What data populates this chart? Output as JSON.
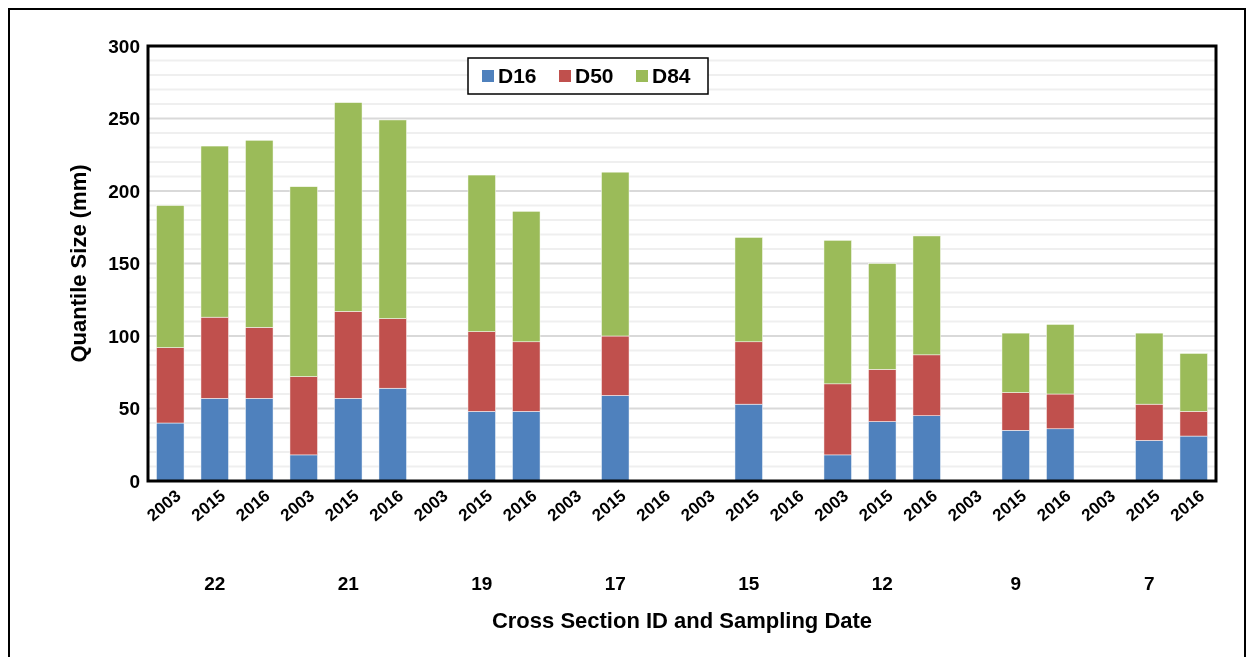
{
  "chart_data": {
    "type": "bar",
    "stacked": true,
    "xlabel": "Cross Section ID and Sampling Date",
    "ylabel": "Quantile Size (mm)",
    "categories": [
      "2003",
      "2015",
      "2016",
      "2003",
      "2015",
      "2016",
      "2003",
      "2015",
      "2016",
      "2003",
      "2015",
      "2016",
      "2003",
      "2015",
      "2016",
      "2003",
      "2015",
      "2016",
      "2003",
      "2015",
      "2016",
      "2003",
      "2015",
      "2016"
    ],
    "annotations": [
      "22",
      "21",
      "19",
      "17",
      "15",
      "12",
      "9",
      "7"
    ],
    "series": [
      {
        "name": "D16",
        "color": "#4f81bd",
        "values": [
          40,
          57,
          57,
          18,
          57,
          64,
          null,
          48,
          48,
          null,
          59,
          null,
          null,
          53,
          null,
          18,
          41,
          45,
          null,
          35,
          36,
          null,
          28,
          31
        ]
      },
      {
        "name": "D50",
        "color": "#c0504d",
        "values": [
          52,
          56,
          49,
          54,
          60,
          48,
          null,
          55,
          48,
          null,
          41,
          null,
          null,
          43,
          null,
          49,
          36,
          42,
          null,
          26,
          24,
          null,
          25,
          17
        ]
      },
      {
        "name": "D84",
        "color": "#9bbb59",
        "values": [
          98,
          118,
          129,
          131,
          144,
          137,
          null,
          108,
          90,
          null,
          113,
          null,
          null,
          72,
          null,
          99,
          73,
          82,
          null,
          41,
          48,
          null,
          49,
          40
        ]
      }
    ],
    "ylim": [
      0,
      300
    ],
    "yticks": [
      0,
      50,
      100,
      150,
      200,
      250,
      300
    ],
    "grid": "y",
    "legend": "top"
  }
}
